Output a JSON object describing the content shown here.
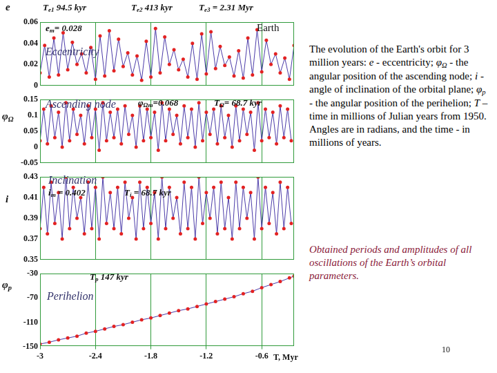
{
  "chart_data": [
    {
      "type": "line",
      "title": "Eccentricity",
      "y_label": {
        "text": "e",
        "sub": ""
      },
      "annotations": [
        {
          "text": "T",
          "sub": "e1",
          "after": " 94.5 kyr"
        },
        {
          "text": "T",
          "sub": "e2",
          "after": " 413 kyr"
        },
        {
          "text": "T",
          "sub": "e3",
          "after": " = 2.31 Myr"
        },
        {
          "text": "e",
          "sub": "m",
          "after": "= 0.028"
        }
      ],
      "x": [
        -3,
        -2.95,
        -2.9,
        -2.85,
        -2.8,
        -2.75,
        -2.7,
        -2.65,
        -2.6,
        -2.55,
        -2.5,
        -2.45,
        -2.4,
        -2.35,
        -2.3,
        -2.25,
        -2.2,
        -2.15,
        -2.1,
        -2.05,
        -2,
        -1.95,
        -1.9,
        -1.85,
        -1.8,
        -1.75,
        -1.7,
        -1.65,
        -1.6,
        -1.55,
        -1.5,
        -1.45,
        -1.4,
        -1.35,
        -1.3,
        -1.25,
        -1.2,
        -1.15,
        -1.1,
        -1.05,
        -1,
        -0.95,
        -0.9,
        -0.85,
        -0.8,
        -0.75,
        -0.7,
        -0.65,
        -0.6,
        -0.55,
        -0.5,
        -0.45,
        -0.4,
        -0.35,
        -0.3,
        -0.25
      ],
      "values": [
        0.012,
        0.038,
        0.008,
        0.045,
        0.01,
        0.05,
        0.015,
        0.041,
        0.02,
        0.03,
        0.012,
        0.036,
        0.006,
        0.047,
        0.009,
        0.052,
        0.014,
        0.044,
        0.018,
        0.031,
        0.01,
        0.028,
        0.005,
        0.042,
        0.008,
        0.054,
        0.012,
        0.046,
        0.02,
        0.034,
        0.015,
        0.025,
        0.008,
        0.04,
        0.006,
        0.049,
        0.011,
        0.051,
        0.016,
        0.037,
        0.019,
        0.027,
        0.009,
        0.033,
        0.007,
        0.045,
        0.01,
        0.053,
        0.013,
        0.043,
        0.02,
        0.03,
        0.012,
        0.026,
        0.006,
        0.038
      ],
      "color": "#4a3aa8",
      "marker": "circle",
      "line_style": "solid",
      "xlim": [
        -3,
        -0.25
      ],
      "xticks": [
        -3,
        -2.4,
        -1.8,
        -1.2,
        -0.6
      ],
      "ylim": [
        0,
        0.06
      ],
      "yticks": [
        0,
        0.02,
        0.04,
        0.06
      ],
      "grid": "x",
      "tick_labels": "y"
    },
    {
      "type": "line",
      "title": "Ascending node",
      "y_label": {
        "text": "φ",
        "sub": "Ω"
      },
      "annotations": [
        {
          "text": "φ",
          "sub": "Ωm",
          "after": "=0.068"
        },
        {
          "text": "T",
          "sub": "Ω",
          "after": "= 68.7 kyr"
        }
      ],
      "x": [
        -3,
        -2.96,
        -2.92,
        -2.88,
        -2.84,
        -2.8,
        -2.76,
        -2.72,
        -2.68,
        -2.64,
        -2.6,
        -2.56,
        -2.52,
        -2.48,
        -2.44,
        -2.4,
        -2.36,
        -2.32,
        -2.28,
        -2.24,
        -2.2,
        -2.16,
        -2.12,
        -2.08,
        -2.04,
        -2,
        -1.96,
        -1.92,
        -1.88,
        -1.84,
        -1.8,
        -1.76,
        -1.72,
        -1.68,
        -1.64,
        -1.6,
        -1.56,
        -1.52,
        -1.48,
        -1.44,
        -1.4,
        -1.36,
        -1.32,
        -1.28,
        -1.24,
        -1.2,
        -1.16,
        -1.12,
        -1.08,
        -1.04,
        -1,
        -0.96,
        -0.92,
        -0.88,
        -0.84,
        -0.8,
        -0.76,
        -0.72,
        -0.68,
        -0.64,
        -0.6,
        -0.56,
        -0.52,
        -0.48,
        -0.44,
        -0.4,
        -0.36,
        -0.32,
        -0.28
      ],
      "values": [
        0.02,
        0.12,
        0.01,
        0.13,
        0.03,
        0.11,
        0,
        0.14,
        0.02,
        0.12,
        0.04,
        0.1,
        0.01,
        0.13,
        0.03,
        0.12,
        -0.01,
        0.14,
        0.02,
        0.11,
        0.03,
        0.12,
        0.01,
        0.13,
        0.04,
        0.1,
        0,
        0.13,
        0.02,
        0.12,
        0.03,
        0.11,
        -0.01,
        0.14,
        0.02,
        0.12,
        0.04,
        0.1,
        0.01,
        0.13,
        0.03,
        0.12,
        0,
        0.14,
        0.02,
        0.11,
        0.04,
        0.12,
        0.01,
        0.13,
        0.03,
        0.1,
        0,
        0.13,
        0.02,
        0.12,
        0.04,
        0.11,
        -0.01,
        0.14,
        0.02,
        0.12,
        0.03,
        0.11,
        0.01,
        0.13,
        0.03,
        0.12,
        0.02
      ],
      "color": "#4a3aa8",
      "marker": "circle",
      "line_style": "solid",
      "xlim": [
        -3,
        -0.25
      ],
      "xticks": [
        -3,
        -2.4,
        -1.8,
        -1.2,
        -0.6
      ],
      "ylim": [
        -0.05,
        0.15
      ],
      "yticks": [
        -0.05,
        0,
        0.05,
        0.1,
        0.15
      ],
      "grid": "x",
      "tick_labels": "y"
    },
    {
      "type": "line",
      "title": "Inclination",
      "y_label": {
        "text": "i",
        "sub": ""
      },
      "annotations": [
        {
          "text": "i",
          "sub": "m",
          "after": " = 0.402"
        },
        {
          "text": "T",
          "sub": "i",
          "after": " = 68.7 kyr"
        }
      ],
      "x": [
        -3,
        -2.96,
        -2.92,
        -2.88,
        -2.84,
        -2.8,
        -2.76,
        -2.72,
        -2.68,
        -2.64,
        -2.6,
        -2.56,
        -2.52,
        -2.48,
        -2.44,
        -2.4,
        -2.36,
        -2.32,
        -2.28,
        -2.24,
        -2.2,
        -2.16,
        -2.12,
        -2.08,
        -2.04,
        -2,
        -1.96,
        -1.92,
        -1.88,
        -1.84,
        -1.8,
        -1.76,
        -1.72,
        -1.68,
        -1.64,
        -1.6,
        -1.56,
        -1.52,
        -1.48,
        -1.44,
        -1.4,
        -1.36,
        -1.32,
        -1.28,
        -1.24,
        -1.2,
        -1.16,
        -1.12,
        -1.08,
        -1.04,
        -1,
        -0.96,
        -0.92,
        -0.88,
        -0.84,
        -0.8,
        -0.76,
        -0.72,
        -0.68,
        -0.64,
        -0.6,
        -0.56,
        -0.52,
        -0.48,
        -0.44,
        -0.4,
        -0.36,
        -0.32,
        -0.28
      ],
      "values": [
        0.38,
        0.42,
        0.375,
        0.425,
        0.385,
        0.415,
        0.37,
        0.43,
        0.38,
        0.42,
        0.39,
        0.41,
        0.375,
        0.425,
        0.38,
        0.42,
        0.37,
        0.43,
        0.385,
        0.415,
        0.38,
        0.42,
        0.375,
        0.425,
        0.39,
        0.41,
        0.37,
        0.425,
        0.38,
        0.42,
        0.385,
        0.415,
        0.37,
        0.43,
        0.38,
        0.42,
        0.39,
        0.41,
        0.375,
        0.425,
        0.38,
        0.42,
        0.37,
        0.43,
        0.385,
        0.415,
        0.39,
        0.42,
        0.375,
        0.425,
        0.38,
        0.41,
        0.37,
        0.425,
        0.38,
        0.42,
        0.39,
        0.415,
        0.37,
        0.43,
        0.38,
        0.42,
        0.385,
        0.415,
        0.375,
        0.425,
        0.38,
        0.42,
        0.385
      ],
      "color": "#4a3aa8",
      "marker": "circle",
      "line_style": "solid",
      "xlim": [
        -3,
        -0.25
      ],
      "xticks": [
        -3,
        -2.4,
        -1.8,
        -1.2,
        -0.6
      ],
      "ylim": [
        0.35,
        0.43
      ],
      "yticks": [
        0.35,
        0.37,
        0.39,
        0.41,
        0.43
      ],
      "grid": "x",
      "tick_labels": "y"
    },
    {
      "type": "line",
      "title": "Perihelion",
      "y_label": {
        "text": "φ",
        "sub": "p"
      },
      "x_label": "T, Myr",
      "annotations": [
        {
          "text": "T",
          "sub": "p",
          "after": " 147 kyr"
        }
      ],
      "x": [
        -3,
        -2.9,
        -2.8,
        -2.7,
        -2.6,
        -2.5,
        -2.4,
        -2.3,
        -2.2,
        -2.1,
        -2,
        -1.9,
        -1.8,
        -1.7,
        -1.6,
        -1.5,
        -1.4,
        -1.3,
        -1.2,
        -1.1,
        -1,
        -0.9,
        -0.8,
        -0.7,
        -0.6,
        -0.5,
        -0.4,
        -0.3,
        -0.25
      ],
      "values": [
        -146,
        -143,
        -139,
        -136,
        -133,
        -128,
        -125,
        -121,
        -117,
        -114,
        -110,
        -106,
        -103,
        -99,
        -95,
        -91,
        -88,
        -84,
        -80,
        -76,
        -72,
        -68,
        -63,
        -59,
        -53,
        -48,
        -43,
        -37,
        -34
      ],
      "color": "#4a3aa8",
      "marker": "circle",
      "line_style": "solid",
      "xlim": [
        -3,
        -0.25
      ],
      "xticks": [
        -3,
        -2.4,
        -1.8,
        -1.2,
        -0.6
      ],
      "ylim": [
        -150,
        -30
      ],
      "yticks": [
        -150,
        -110,
        -70,
        -30
      ],
      "grid": "x"
    }
  ],
  "slide": {
    "earth": "Earth",
    "description": [
      [
        {
          "text": "The evolution of the Earth's orbit for 3 million years: "
        },
        {
          "text": "e",
          "style": "italic"
        },
        {
          "text": " - eccentricity; "
        },
        {
          "text": "φ",
          "style": "italic"
        },
        {
          "text": "Ω",
          "style": "sub"
        },
        {
          "text": " - the angular position of the ascending node; "
        },
        {
          "text": "i",
          "style": "italic"
        },
        {
          "text": " - angle of inclination of the orbital plane; "
        },
        {
          "text": "φ",
          "style": "italic"
        },
        {
          "text": "p",
          "style": "sub"
        },
        {
          "text": " - the angular position of the perihelion; "
        },
        {
          "text": "T",
          "style": "italic"
        },
        {
          "text": " – time in millions of Julian years from 1950."
        }
      ],
      [
        {
          "text": " Angles are in radians, and the time - in millions of years."
        }
      ]
    ],
    "summary": "Obtained periods and amplitudes of all oscillations of the Earth’s orbital parameters.",
    "page": "10"
  }
}
